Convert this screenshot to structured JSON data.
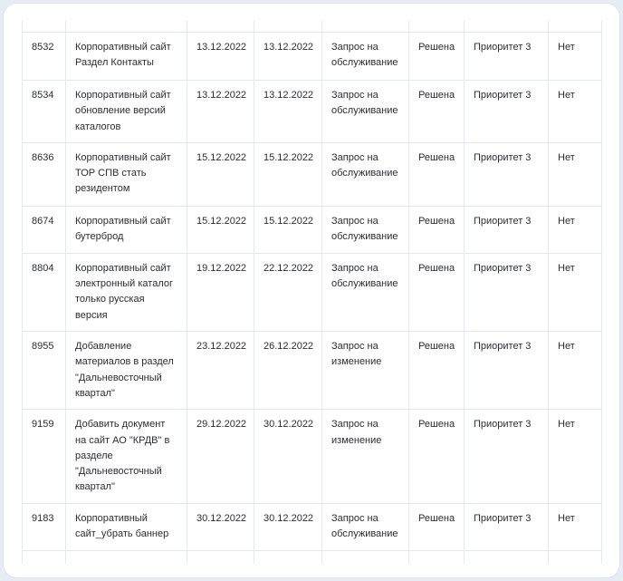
{
  "rows": [
    {
      "id": "8532",
      "name": "Корпоративный сайт Раздел Контакты",
      "start": "13.12.2022",
      "end": "13.12.2022",
      "type": "Запрос на обслуживание",
      "status": "Решена",
      "priority": "Приоритет 3",
      "flag": "Нет"
    },
    {
      "id": "8534",
      "name": "Корпоративный сайт обновление версий каталогов",
      "start": "13.12.2022",
      "end": "13.12.2022",
      "type": "Запрос на обслуживание",
      "status": "Решена",
      "priority": "Приоритет 3",
      "flag": "Нет"
    },
    {
      "id": "8636",
      "name": "Корпоративный сайт ТОР СПВ стать резидентом",
      "start": "15.12.2022",
      "end": "15.12.2022",
      "type": "Запрос на обслуживание",
      "status": "Решена",
      "priority": "Приоритет 3",
      "flag": "Нет"
    },
    {
      "id": "8674",
      "name": "Корпоративный сайт бутерброд",
      "start": "15.12.2022",
      "end": "15.12.2022",
      "type": "Запрос на обслуживание",
      "status": "Решена",
      "priority": "Приоритет 3",
      "flag": "Нет"
    },
    {
      "id": "8804",
      "name": "Корпоративный сайт электронный каталог только русская версия",
      "start": "19.12.2022",
      "end": "22.12.2022",
      "type": "Запрос на обслуживание",
      "status": "Решена",
      "priority": "Приоритет 3",
      "flag": "Нет"
    },
    {
      "id": "8955",
      "name": "Добавление материалов в раздел \"Дальневосточный квартал\"",
      "start": "23.12.2022",
      "end": "26.12.2022",
      "type": "Запрос на изменение",
      "status": "Решена",
      "priority": "Приоритет 3",
      "flag": "Нет"
    },
    {
      "id": "9159",
      "name": "Добавить документ на сайт АО \"КРДВ\" в разделе \"Дальневосточный квартал\"",
      "start": "29.12.2022",
      "end": "30.12.2022",
      "type": "Запрос на изменение",
      "status": "Решена",
      "priority": "Приоритет 3",
      "flag": "Нет"
    },
    {
      "id": "9183",
      "name": "Корпоративный сайт_убрать баннер",
      "start": "30.12.2022",
      "end": "30.12.2022",
      "type": "Запрос на обслуживание",
      "status": "Решена",
      "priority": "Приоритет 3",
      "flag": "Нет"
    }
  ]
}
